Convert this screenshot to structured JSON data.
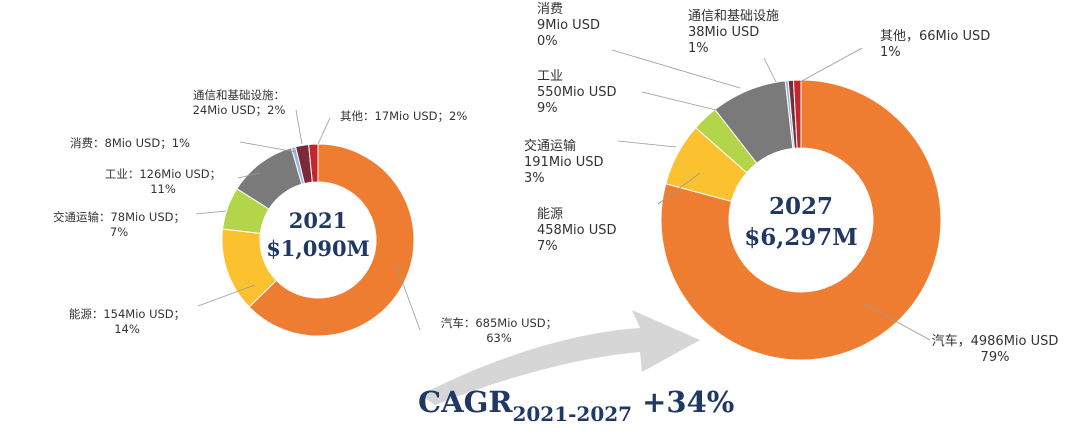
{
  "colors": {
    "automotive": "#ee7d31",
    "energy": "#fcc12e",
    "transport": "#b4d54a",
    "industry": "#7a7a7a",
    "consumer": "#9ab5d8",
    "telecom": "#7b2a3b",
    "other": "#c1272d",
    "leader": "#9a9a9a",
    "navy": "#1f3864",
    "arrow": "#d6d6d6"
  },
  "chart_data": [
    {
      "type": "pie",
      "center_year": "2021",
      "center_total": "$1,090M",
      "slices": [
        {
          "key": "automotive",
          "value": 685,
          "share": 63,
          "label_lines": [
            "汽车：685Mio USD；",
            "63%"
          ]
        },
        {
          "key": "energy",
          "value": 154,
          "share": 14,
          "label_lines": [
            "能源：154Mio USD；",
            "14%"
          ]
        },
        {
          "key": "transport",
          "value": 78,
          "share": 7,
          "label_lines": [
            "交通运输：78Mio USD；",
            "7%"
          ]
        },
        {
          "key": "industry",
          "value": 126,
          "share": 11,
          "label_lines": [
            "工业：126Mio USD；",
            "11%"
          ]
        },
        {
          "key": "consumer",
          "value": 8,
          "share": 1,
          "label_lines": [
            "消费：8Mio USD；1%"
          ]
        },
        {
          "key": "telecom",
          "value": 24,
          "share": 2,
          "label_lines": [
            "通信和基础设施：",
            "24Mio USD；2%"
          ]
        },
        {
          "key": "other",
          "value": 17,
          "share": 2,
          "label_lines": [
            "其他：17Mio USD；2%"
          ]
        }
      ]
    },
    {
      "type": "pie",
      "center_year": "2027",
      "center_total": "$6,297M",
      "slices": [
        {
          "key": "automotive",
          "value": 4986,
          "share": 79,
          "label_lines": [
            "汽车，4986Mio USD",
            "79%"
          ]
        },
        {
          "key": "energy",
          "value": 458,
          "share": 7,
          "label_lines": [
            "能源",
            "458Mio USD",
            "7%"
          ]
        },
        {
          "key": "transport",
          "value": 191,
          "share": 3,
          "label_lines": [
            "交通运输",
            "191Mio USD",
            "3%"
          ]
        },
        {
          "key": "industry",
          "value": 550,
          "share": 9,
          "label_lines": [
            "工业",
            "550Mio USD",
            "9%"
          ]
        },
        {
          "key": "consumer",
          "value": 9,
          "share": 0,
          "label_lines": [
            "消费",
            "9Mio USD",
            "0%"
          ]
        },
        {
          "key": "telecom",
          "value": 38,
          "share": 1,
          "label_lines": [
            "通信和基础设施",
            "38Mio USD",
            "1%"
          ]
        },
        {
          "key": "other",
          "value": 66,
          "share": 1,
          "label_lines": [
            "其他，66Mio USD",
            "1%"
          ]
        }
      ]
    }
  ],
  "cagr": {
    "prefix": "CAGR",
    "subscript": "2021-2027",
    "value": "+34%"
  }
}
